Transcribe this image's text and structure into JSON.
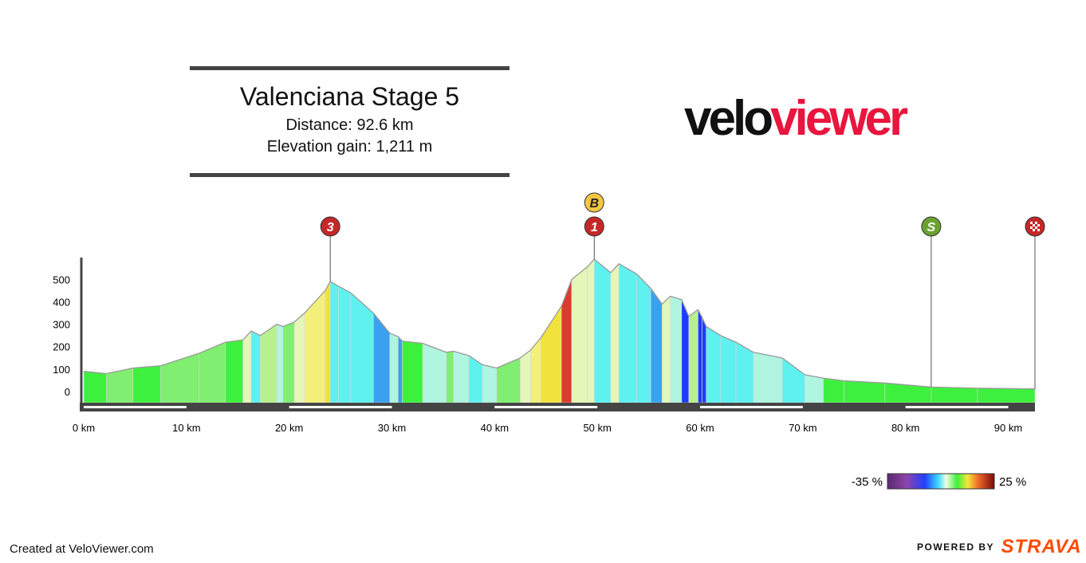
{
  "header": {
    "title": "Valenciana Stage 5",
    "distance": "Distance: 92.6 km",
    "elevation_gain": "Elevation gain: 1,211 m"
  },
  "logo": {
    "part1": "velo",
    "part2": "viewer"
  },
  "colors": {
    "rule": "#444444",
    "logo_dark": "#111111",
    "logo_accent": "#e8163e",
    "axis_bar": "#444444",
    "strava": "#fc4c02",
    "marker_red": "#c62828",
    "marker_bonus": "#f4c542",
    "marker_sprint": "#6aa232"
  },
  "chart_data": {
    "type": "area",
    "title": "",
    "xlabel": "",
    "ylabel": "",
    "xlim": [
      0,
      92.6
    ],
    "ylim": [
      -50,
      650
    ],
    "y_ticks": [
      "0",
      "100",
      "200",
      "300",
      "400",
      "500"
    ],
    "x_ticks": [
      "0 km",
      "10 km",
      "20 km",
      "30 km",
      "40 km",
      "50 km",
      "60 km",
      "70 km",
      "80 km",
      "90 km"
    ],
    "profile": [
      [
        0,
        90
      ],
      [
        2.2,
        80
      ],
      [
        4.8,
        105
      ],
      [
        7.5,
        115
      ],
      [
        11.2,
        170
      ],
      [
        13.8,
        220
      ],
      [
        15.5,
        230
      ],
      [
        16.3,
        270
      ],
      [
        17.2,
        250
      ],
      [
        18.8,
        300
      ],
      [
        19.4,
        290
      ],
      [
        20.5,
        310
      ],
      [
        21.5,
        350
      ],
      [
        23.5,
        450
      ],
      [
        24.0,
        490
      ],
      [
        24.8,
        470
      ],
      [
        26.0,
        440
      ],
      [
        28.2,
        350
      ],
      [
        29.8,
        260
      ],
      [
        30.6,
        245
      ],
      [
        31.0,
        225
      ],
      [
        33.0,
        215
      ],
      [
        35.3,
        175
      ],
      [
        36.0,
        180
      ],
      [
        37.5,
        160
      ],
      [
        38.8,
        120
      ],
      [
        40.2,
        105
      ],
      [
        42.5,
        150
      ],
      [
        43.5,
        185
      ],
      [
        44.5,
        240
      ],
      [
        46.5,
        380
      ],
      [
        47.5,
        500
      ],
      [
        49.0,
        555
      ],
      [
        49.7,
        590
      ],
      [
        51.3,
        530
      ],
      [
        52.1,
        570
      ],
      [
        53.8,
        525
      ],
      [
        55.2,
        460
      ],
      [
        56.3,
        390
      ],
      [
        57.1,
        425
      ],
      [
        58.2,
        410
      ],
      [
        58.9,
        335
      ],
      [
        59.8,
        365
      ],
      [
        60.2,
        330
      ],
      [
        60.6,
        290
      ],
      [
        62.0,
        250
      ],
      [
        63.5,
        220
      ],
      [
        65.2,
        175
      ],
      [
        68.0,
        150
      ],
      [
        70.2,
        75
      ],
      [
        72.0,
        60
      ],
      [
        74.0,
        48
      ],
      [
        78.0,
        38
      ],
      [
        82.5,
        20
      ],
      [
        87.0,
        15
      ],
      [
        92.6,
        12
      ]
    ],
    "gradient_scale": {
      "min_label": "-35 %",
      "max_label": "25 %"
    },
    "markers": [
      {
        "label": "3",
        "km": 24.0,
        "type": "climb"
      },
      {
        "label": "B",
        "km": 49.7,
        "type": "bonus"
      },
      {
        "label": "1",
        "km": 49.7,
        "type": "climb"
      },
      {
        "label": "S",
        "km": 82.5,
        "type": "sprint"
      },
      {
        "label": "",
        "km": 92.6,
        "type": "finish"
      }
    ]
  },
  "footer": {
    "created_at": "Created at VeloViewer.com",
    "powered_by": "POWERED BY",
    "strava": "STRAVA"
  }
}
